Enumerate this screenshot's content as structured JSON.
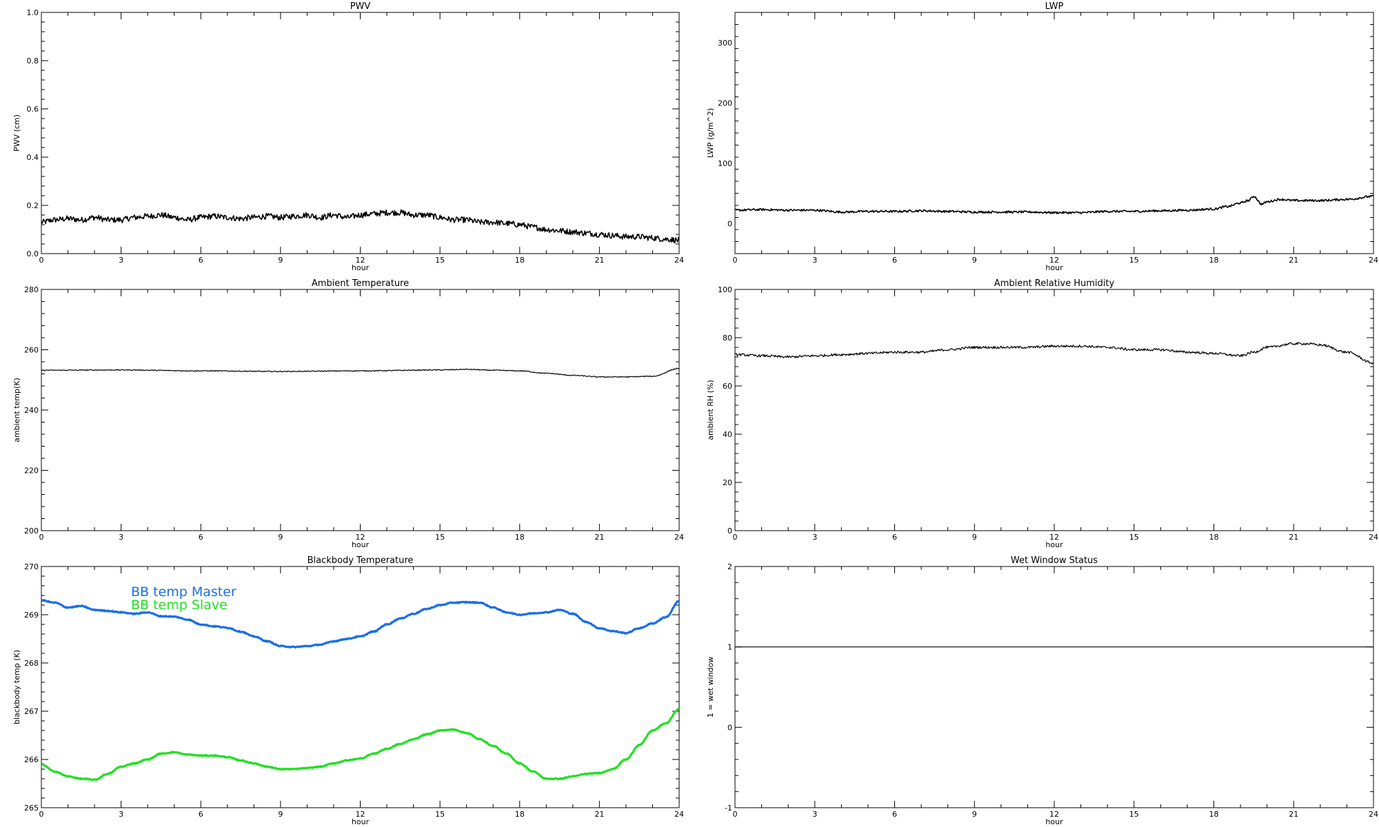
{
  "chart_data": [
    {
      "type": "line",
      "title": "PWV",
      "xlabel": "hour",
      "ylabel": "PWV (cm)",
      "xlim": [
        0,
        24
      ],
      "ylim": [
        0.0,
        1.0
      ],
      "xticks": [
        "0",
        "3",
        "6",
        "9",
        "12",
        "15",
        "18",
        "21",
        "24"
      ],
      "yticks": [
        "0.0",
        "0.2",
        "0.4",
        "0.6",
        "0.8",
        "1.0"
      ],
      "grid": false,
      "series": [
        {
          "color": "#000000",
          "noise": 0.012,
          "width": 1.6,
          "x": [
            0,
            0.5,
            1,
            1.5,
            2,
            2.5,
            3,
            3.5,
            4,
            4.5,
            5,
            5.5,
            6,
            6.5,
            7,
            7.5,
            8,
            8.5,
            9,
            9.5,
            10,
            10.5,
            11,
            11.5,
            12,
            12.5,
            13,
            13.5,
            14,
            14.5,
            15,
            15.5,
            16,
            16.5,
            17,
            17.5,
            18,
            18.5,
            19,
            19.5,
            20,
            20.5,
            21,
            21.5,
            22,
            22.5,
            23,
            23.5,
            24
          ],
          "y": [
            0.13,
            0.14,
            0.145,
            0.14,
            0.15,
            0.14,
            0.14,
            0.15,
            0.155,
            0.16,
            0.15,
            0.14,
            0.15,
            0.155,
            0.15,
            0.145,
            0.15,
            0.155,
            0.15,
            0.155,
            0.16,
            0.15,
            0.16,
            0.15,
            0.16,
            0.165,
            0.17,
            0.17,
            0.16,
            0.16,
            0.15,
            0.14,
            0.14,
            0.13,
            0.13,
            0.125,
            0.12,
            0.11,
            0.1,
            0.095,
            0.09,
            0.085,
            0.08,
            0.075,
            0.07,
            0.07,
            0.065,
            0.06,
            0.055
          ]
        }
      ]
    },
    {
      "type": "line",
      "title": "LWP",
      "xlabel": "hour",
      "ylabel": "LWP (g/m^2)",
      "xlim": [
        0,
        24
      ],
      "ylim": [
        -50,
        350
      ],
      "xticks": [
        "0",
        "3",
        "6",
        "9",
        "12",
        "15",
        "18",
        "21",
        "24"
      ],
      "yticks": [
        "0",
        "100",
        "200",
        "300"
      ],
      "ytick_values": [
        0,
        100,
        200,
        300
      ],
      "grid": false,
      "series": [
        {
          "color": "#000000",
          "noise": 1.8,
          "width": 1.6,
          "x": [
            0,
            1,
            2,
            3,
            4,
            5,
            6,
            7,
            8,
            9,
            10,
            11,
            12,
            13,
            14,
            15,
            16,
            17,
            18,
            18.5,
            19,
            19.3,
            19.5,
            19.8,
            20,
            20.5,
            21,
            22,
            23,
            24
          ],
          "y": [
            22,
            23,
            22,
            22,
            19,
            20,
            20,
            21,
            20,
            19,
            19,
            19,
            18,
            18,
            20,
            20,
            21,
            22,
            24,
            28,
            34,
            38,
            45,
            32,
            36,
            40,
            38,
            38,
            40,
            45
          ]
        }
      ]
    },
    {
      "type": "line",
      "title": "Ambient Temperature",
      "xlabel": "hour",
      "ylabel": "ambient temp(K)",
      "xlim": [
        0,
        24
      ],
      "ylim": [
        200,
        280
      ],
      "xticks": [
        "0",
        "3",
        "6",
        "9",
        "12",
        "15",
        "18",
        "21",
        "24"
      ],
      "yticks": [
        "200",
        "220",
        "240",
        "260",
        "280"
      ],
      "ytick_values": [
        200,
        220,
        240,
        260,
        280
      ],
      "grid": false,
      "series": [
        {
          "color": "#000000",
          "noise": 0.15,
          "width": 1.2,
          "x": [
            0,
            3,
            6,
            9,
            12,
            15,
            16,
            17,
            18,
            19,
            20,
            21,
            22,
            23,
            24
          ],
          "y": [
            253.2,
            253.3,
            253.0,
            252.8,
            253.0,
            253.3,
            253.5,
            253.2,
            253.0,
            252.2,
            251.5,
            251.0,
            251.0,
            251.2,
            253.8
          ]
        }
      ]
    },
    {
      "type": "line",
      "title": "Ambient Relative Humidity",
      "xlabel": "hour",
      "ylabel": "ambient RH (%)",
      "xlim": [
        0,
        24
      ],
      "ylim": [
        0,
        100
      ],
      "xticks": [
        "0",
        "3",
        "6",
        "9",
        "12",
        "15",
        "18",
        "21",
        "24"
      ],
      "yticks": [
        "0",
        "20",
        "40",
        "60",
        "80",
        "100"
      ],
      "ytick_values": [
        0,
        20,
        40,
        60,
        80,
        100
      ],
      "grid": false,
      "series": [
        {
          "color": "#000000",
          "noise": 0.5,
          "width": 1.2,
          "x": [
            0,
            1,
            2,
            3,
            4,
            5,
            6,
            7,
            8,
            9,
            10,
            11,
            12,
            13,
            14,
            15,
            16,
            17,
            18,
            19,
            19.5,
            20,
            21,
            21.5,
            22,
            23,
            24
          ],
          "y": [
            73,
            72.5,
            72,
            72.5,
            73,
            73.5,
            74,
            74,
            75,
            76,
            76,
            76,
            76.5,
            76.5,
            76,
            75,
            75,
            74,
            73.5,
            72.5,
            74,
            76,
            77.5,
            77.5,
            77,
            74,
            69.5
          ]
        }
      ]
    },
    {
      "type": "line",
      "title": "Blackbody Temperature",
      "xlabel": "hour",
      "ylabel": "blackbody temp (K)",
      "xlim": [
        0,
        24
      ],
      "ylim": [
        265,
        270
      ],
      "xticks": [
        "0",
        "3",
        "6",
        "9",
        "12",
        "15",
        "18",
        "21",
        "24"
      ],
      "yticks": [
        "265",
        "266",
        "267",
        "268",
        "269",
        "270"
      ],
      "ytick_values": [
        265,
        266,
        267,
        268,
        269,
        270
      ],
      "grid": false,
      "legend": "top-left",
      "series": [
        {
          "name": "BB temp Master",
          "color": "#1a6ee8",
          "noise": 0.01,
          "width": 3.2,
          "x": [
            0,
            0.5,
            1,
            1.5,
            2,
            2.5,
            3,
            3.5,
            4,
            4.5,
            5,
            5.5,
            6,
            6.5,
            7,
            7.5,
            8,
            8.5,
            9,
            9.5,
            10,
            10.5,
            11,
            11.5,
            12,
            12.5,
            13,
            13.5,
            14,
            14.5,
            15,
            15.5,
            16,
            16.5,
            17,
            17.5,
            18,
            18.5,
            19,
            19.5,
            20,
            20.5,
            21,
            21.5,
            22,
            22.5,
            23,
            23.5,
            24
          ],
          "y": [
            269.3,
            269.25,
            269.15,
            269.18,
            269.1,
            269.08,
            269.05,
            269.02,
            269.05,
            268.97,
            268.96,
            268.9,
            268.8,
            268.76,
            268.73,
            268.65,
            268.55,
            268.45,
            268.35,
            268.33,
            268.35,
            268.38,
            268.45,
            268.5,
            268.55,
            268.65,
            268.8,
            268.92,
            269.02,
            269.12,
            269.2,
            269.25,
            269.26,
            269.25,
            269.15,
            269.05,
            269.0,
            269.03,
            269.05,
            269.1,
            269.02,
            268.85,
            268.72,
            268.66,
            268.62,
            268.72,
            268.82,
            268.95,
            269.28
          ]
        },
        {
          "name": "BB temp Slave",
          "color": "#22e022",
          "noise": 0.01,
          "width": 3.2,
          "x": [
            0,
            0.5,
            1,
            1.5,
            2,
            2.5,
            3,
            3.5,
            4,
            4.5,
            5,
            5.5,
            6,
            6.5,
            7,
            7.5,
            8,
            8.5,
            9,
            9.5,
            10,
            10.5,
            11,
            11.5,
            12,
            12.5,
            13,
            13.5,
            14,
            14.5,
            15,
            15.5,
            16,
            16.5,
            17,
            17.5,
            18,
            18.5,
            19,
            19.5,
            20,
            20.5,
            21,
            21.5,
            22,
            22.5,
            23,
            23.5,
            24
          ],
          "y": [
            265.9,
            265.75,
            265.65,
            265.6,
            265.58,
            265.7,
            265.85,
            265.92,
            266.0,
            266.12,
            266.15,
            266.1,
            266.08,
            266.08,
            266.05,
            265.98,
            265.92,
            265.85,
            265.8,
            265.8,
            265.82,
            265.85,
            265.92,
            265.98,
            266.02,
            266.12,
            266.22,
            266.32,
            266.42,
            266.52,
            266.6,
            266.62,
            266.55,
            266.42,
            266.28,
            266.12,
            265.92,
            265.75,
            265.6,
            265.6,
            265.65,
            265.7,
            265.72,
            265.8,
            266.0,
            266.3,
            266.6,
            266.75,
            267.05
          ]
        }
      ]
    },
    {
      "type": "line",
      "title": "Wet Window Status",
      "xlabel": "hour",
      "ylabel": "1 = wet window",
      "xlim": [
        0,
        24
      ],
      "ylim": [
        -1,
        2
      ],
      "xticks": [
        "0",
        "3",
        "6",
        "9",
        "12",
        "15",
        "18",
        "21",
        "24"
      ],
      "yticks": [
        "-1",
        "0",
        "1",
        "2"
      ],
      "ytick_values": [
        -1,
        0,
        1,
        2
      ],
      "grid": false,
      "series": [
        {
          "color": "#000000",
          "noise": 0,
          "width": 1.2,
          "x": [
            0,
            24
          ],
          "y": [
            1,
            1
          ]
        }
      ]
    }
  ]
}
